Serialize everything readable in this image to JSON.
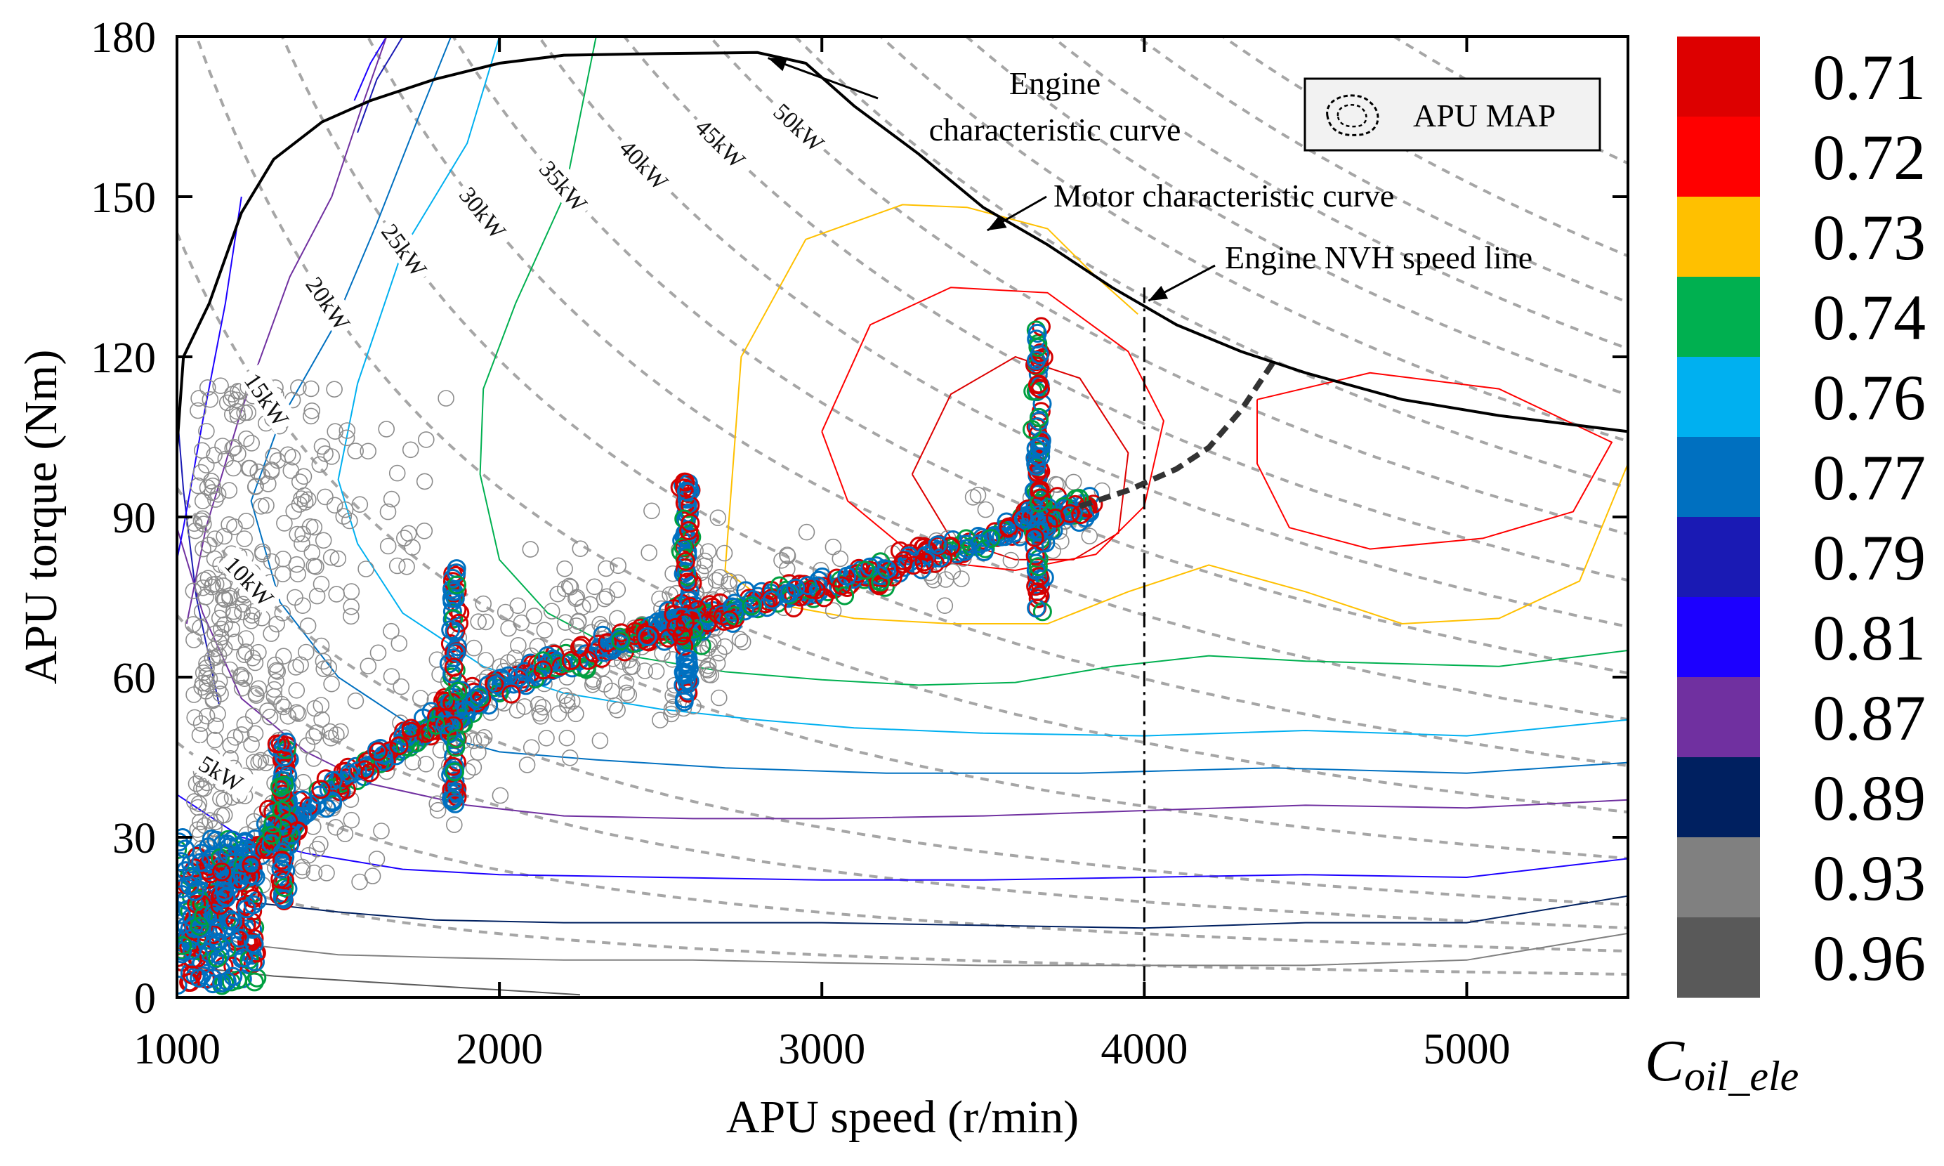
{
  "chart_data": {
    "type": "scatter",
    "xlabel": "APU speed (r/min)",
    "ylabel": "APU torque (Nm)",
    "xlim": [
      1000,
      5500
    ],
    "ylim": [
      0,
      180
    ],
    "xticks": [
      "1000",
      "2000",
      "3000",
      "4000",
      "5000"
    ],
    "yticks": [
      "0",
      "30",
      "60",
      "90",
      "120",
      "150",
      "180"
    ],
    "xtick_values": [
      1000,
      2000,
      3000,
      4000,
      5000
    ],
    "ytick_values": [
      0,
      30,
      60,
      90,
      120,
      150,
      180
    ],
    "legend": {
      "label": "APU MAP",
      "placement": "top-right"
    },
    "annotations": [
      {
        "id": "engine-curve",
        "lines": [
          "Engine",
          "characteristic curve"
        ],
        "point": [
          2820,
          176
        ]
      },
      {
        "id": "motor-curve",
        "lines": [
          "Motor characteristic curve"
        ],
        "point": [
          3500,
          145
        ]
      },
      {
        "id": "nvh-line",
        "lines": [
          "Engine NVH speed line"
        ],
        "point": [
          4000,
          131
        ]
      }
    ],
    "colorbar": {
      "title": "C",
      "title_sub": "oil_ele",
      "labels": [
        "0.71",
        "0.72",
        "0.73",
        "0.74",
        "0.76",
        "0.77",
        "0.79",
        "0.81",
        "0.87",
        "0.89",
        "0.93",
        "0.96"
      ],
      "colors": [
        "#dd0000",
        "#ff0000",
        "#ffc000",
        "#00b050",
        "#00b0f0",
        "#0070c0",
        "#1a1ab4",
        "#1c00ff",
        "#7030a0",
        "#002060",
        "#808080",
        "#595959"
      ]
    },
    "power_lines_kw": [
      5,
      10,
      15,
      20,
      25,
      30,
      35,
      40,
      45,
      50
    ],
    "power_labels": [
      "5kW",
      "10kW",
      "15kW",
      "20kW",
      "25kW",
      "30kW",
      "35kW",
      "40kW",
      "45kW",
      "50kW"
    ],
    "extra_power_lines_kw": [
      2.5,
      7.5,
      55,
      60,
      65,
      70,
      75,
      80,
      90
    ],
    "engine_curve": [
      [
        1000,
        103
      ],
      [
        1020,
        120
      ],
      [
        1100,
        130
      ],
      [
        1200,
        147
      ],
      [
        1300,
        157
      ],
      [
        1450,
        164
      ],
      [
        1600,
        168
      ],
      [
        1800,
        172
      ],
      [
        2000,
        175
      ],
      [
        2200,
        176.5
      ],
      [
        2500,
        176.8
      ],
      [
        2800,
        177
      ],
      [
        2950,
        175
      ],
      [
        3100,
        167
      ],
      [
        3300,
        158
      ],
      [
        3500,
        148
      ],
      [
        3700,
        141
      ],
      [
        3900,
        133
      ],
      [
        4100,
        126
      ],
      [
        4300,
        121
      ],
      [
        4500,
        117
      ],
      [
        4800,
        112
      ],
      [
        5100,
        109
      ],
      [
        5500,
        106
      ]
    ],
    "nvh_speed": 4000,
    "operating_line": [
      [
        1000,
        8
      ],
      [
        1100,
        17
      ],
      [
        1200,
        24
      ],
      [
        1300,
        30
      ],
      [
        1400,
        35
      ],
      [
        1500,
        40
      ],
      [
        1600,
        44
      ],
      [
        1700,
        48
      ],
      [
        1800,
        51
      ],
      [
        1900,
        55
      ],
      [
        2000,
        58
      ],
      [
        2100,
        61
      ],
      [
        2200,
        63
      ],
      [
        2300,
        65
      ],
      [
        2400,
        67
      ],
      [
        2500,
        69
      ],
      [
        2600,
        70
      ],
      [
        2700,
        72
      ],
      [
        2800,
        74
      ],
      [
        2900,
        75.5
      ],
      [
        3000,
        77
      ],
      [
        3100,
        78.5
      ],
      [
        3200,
        80
      ],
      [
        3300,
        82
      ],
      [
        3400,
        84
      ],
      [
        3500,
        86
      ],
      [
        3600,
        88
      ],
      [
        3700,
        90
      ],
      [
        3800,
        92
      ]
    ],
    "operating_line_extension": [
      [
        3800,
        92
      ],
      [
        3950,
        95
      ],
      [
        4100,
        99
      ],
      [
        4200,
        103
      ],
      [
        4300,
        110
      ],
      [
        4400,
        119
      ]
    ],
    "vertical_clusters": [
      {
        "speed": 1330,
        "tmin": 18,
        "tmax": 48
      },
      {
        "speed": 1860,
        "tmin": 35,
        "tmax": 81
      },
      {
        "speed": 2580,
        "tmin": 55,
        "tmax": 97
      },
      {
        "speed": 3670,
        "tmin": 72,
        "tmax": 126
      }
    ],
    "efficiency_contours": [
      {
        "level": "0.71",
        "color": "#dd0000",
        "points": [
          [
            3280,
            98
          ],
          [
            3400,
            113
          ],
          [
            3600,
            120
          ],
          [
            3800,
            116
          ],
          [
            3950,
            102
          ],
          [
            3920,
            87
          ],
          [
            3780,
            82
          ],
          [
            3600,
            82
          ],
          [
            3400,
            86
          ],
          [
            3280,
            98
          ]
        ]
      },
      {
        "level": "0.72",
        "color": "#ff0000",
        "points": [
          [
            3000,
            106
          ],
          [
            3150,
            126
          ],
          [
            3400,
            133
          ],
          [
            3700,
            132
          ],
          [
            3950,
            121
          ],
          [
            4060,
            108
          ],
          [
            4000,
            92
          ],
          [
            3850,
            83
          ],
          [
            3600,
            80
          ],
          [
            3300,
            82
          ],
          [
            3080,
            93
          ],
          [
            3000,
            106
          ]
        ]
      },
      {
        "level": "0.72",
        "color": "#ff0000",
        "points": [
          [
            4350,
            112
          ],
          [
            4700,
            117
          ],
          [
            5100,
            114
          ],
          [
            5450,
            104
          ],
          [
            5330,
            91
          ],
          [
            5050,
            86
          ],
          [
            4700,
            84
          ],
          [
            4450,
            88
          ],
          [
            4350,
            100
          ],
          [
            4350,
            112
          ]
        ]
      },
      {
        "level": "0.73",
        "color": "#ffc000",
        "points": [
          [
            2700,
            80
          ],
          [
            2750,
            120
          ],
          [
            2950,
            142
          ],
          [
            3250,
            148.5
          ],
          [
            3450,
            148
          ],
          [
            3700,
            144
          ],
          [
            3850,
            135
          ],
          [
            3980,
            128
          ]
        ]
      },
      {
        "level": "0.73",
        "color": "#ffc000",
        "points": [
          [
            2700,
            80
          ],
          [
            2830,
            74
          ],
          [
            3100,
            71
          ],
          [
            3400,
            70
          ],
          [
            3700,
            70
          ],
          [
            3950,
            76
          ],
          [
            4200,
            81
          ],
          [
            4500,
            76
          ],
          [
            4800,
            70
          ],
          [
            5100,
            71
          ],
          [
            5350,
            78
          ],
          [
            5500,
            100
          ]
        ]
      },
      {
        "level": "0.74",
        "color": "#00b050",
        "points": [
          [
            2300,
            180
          ],
          [
            2200,
            150
          ],
          [
            2050,
            130
          ],
          [
            1950,
            114
          ],
          [
            1940,
            98
          ],
          [
            2000,
            82
          ],
          [
            2150,
            72
          ],
          [
            2400,
            64
          ],
          [
            2700,
            61
          ],
          [
            3000,
            59.5
          ],
          [
            3300,
            58.5
          ],
          [
            3600,
            59
          ],
          [
            3900,
            62
          ],
          [
            4200,
            64
          ],
          [
            4500,
            63
          ],
          [
            4800,
            62.5
          ],
          [
            5100,
            62
          ],
          [
            5500,
            65
          ]
        ]
      },
      {
        "level": "0.76",
        "color": "#00b0f0",
        "points": [
          [
            2000,
            180
          ],
          [
            1900,
            160
          ],
          [
            1700,
            140
          ],
          [
            1560,
            115
          ],
          [
            1500,
            97
          ],
          [
            1560,
            85
          ],
          [
            1700,
            72
          ],
          [
            1950,
            62
          ],
          [
            2200,
            57
          ],
          [
            2500,
            54
          ],
          [
            2800,
            52
          ],
          [
            3100,
            50.5
          ],
          [
            3500,
            49.5
          ],
          [
            4000,
            49
          ],
          [
            4500,
            50
          ],
          [
            5000,
            49
          ],
          [
            5500,
            52
          ]
        ]
      },
      {
        "level": "0.77",
        "color": "#0070c0",
        "points": [
          [
            1850,
            180
          ],
          [
            1750,
            165
          ],
          [
            1620,
            145
          ],
          [
            1480,
            125
          ],
          [
            1320,
            108
          ],
          [
            1230,
            93
          ],
          [
            1320,
            74
          ],
          [
            1500,
            60
          ],
          [
            1750,
            50
          ],
          [
            2000,
            46
          ],
          [
            2300,
            44.5
          ],
          [
            2700,
            43
          ],
          [
            3200,
            42
          ],
          [
            3800,
            42
          ],
          [
            4400,
            43
          ],
          [
            5000,
            42
          ],
          [
            5500,
            44
          ]
        ]
      },
      {
        "level": "0.79",
        "color": "#1a1ab4",
        "points": [
          [
            1700,
            180
          ],
          [
            1620,
            172
          ],
          [
            1560,
            162
          ]
        ]
      },
      {
        "level": "0.81",
        "color": "#1c00ff",
        "points": [
          [
            1650,
            180
          ],
          [
            1600,
            175
          ],
          [
            1550,
            168
          ]
        ]
      },
      {
        "level": "0.87",
        "color": "#7030a0",
        "points": [
          [
            1000,
            88
          ],
          [
            1080,
            72
          ],
          [
            1200,
            56
          ],
          [
            1400,
            46
          ],
          [
            1600,
            40
          ],
          [
            1900,
            36
          ],
          [
            2200,
            34
          ],
          [
            2600,
            33.5
          ],
          [
            3000,
            33.5
          ],
          [
            3500,
            34
          ],
          [
            4000,
            35
          ],
          [
            4500,
            36
          ],
          [
            5000,
            35.5
          ],
          [
            5500,
            37
          ]
        ]
      },
      {
        "level": "0.81",
        "color": "#1c00ff",
        "points": [
          [
            1000,
            38
          ],
          [
            1200,
            30
          ],
          [
            1400,
            27
          ],
          [
            1700,
            24
          ],
          [
            2000,
            23
          ],
          [
            2500,
            22.5
          ],
          [
            3000,
            22
          ],
          [
            3500,
            22
          ],
          [
            4000,
            22.5
          ],
          [
            4500,
            23
          ],
          [
            5000,
            22.5
          ],
          [
            5500,
            26
          ]
        ]
      },
      {
        "level": "0.89",
        "color": "#002060",
        "points": [
          [
            1000,
            24
          ],
          [
            1200,
            18
          ],
          [
            1500,
            16
          ],
          [
            1800,
            14.5
          ],
          [
            2200,
            14
          ],
          [
            2600,
            14
          ],
          [
            3000,
            14
          ],
          [
            3500,
            13.5
          ],
          [
            4000,
            13
          ],
          [
            4500,
            14
          ],
          [
            5000,
            14
          ],
          [
            5500,
            19
          ]
        ]
      },
      {
        "level": "0.93",
        "color": "#808080",
        "points": [
          [
            1000,
            15
          ],
          [
            1200,
            10
          ],
          [
            1500,
            8
          ],
          [
            1800,
            7.5
          ],
          [
            2200,
            7
          ],
          [
            2600,
            7
          ],
          [
            3000,
            6.5
          ],
          [
            3500,
            6
          ],
          [
            4000,
            6
          ],
          [
            4500,
            6
          ],
          [
            5000,
            7
          ],
          [
            5500,
            12
          ]
        ]
      },
      {
        "level": "0.96",
        "color": "#595959",
        "points": [
          [
            1000,
            6
          ],
          [
            1300,
            4
          ],
          [
            1700,
            2.5
          ],
          [
            2250,
            0.5
          ]
        ]
      }
    ],
    "left_contours": [
      {
        "level": "0.79",
        "color": "#1a1ab4",
        "points": [
          [
            1000,
            110
          ],
          [
            1020,
            95
          ],
          [
            1060,
            75
          ],
          [
            1130,
            55
          ]
        ]
      },
      {
        "level": "0.81",
        "color": "#1c00ff",
        "points": [
          [
            1200,
            150
          ],
          [
            1150,
            130
          ],
          [
            1080,
            108
          ],
          [
            1020,
            88
          ],
          [
            1000,
            82
          ]
        ]
      },
      {
        "level": "0.87",
        "color": "#7030a0",
        "points": [
          [
            1650,
            180
          ],
          [
            1580,
            168
          ],
          [
            1480,
            150
          ],
          [
            1350,
            135
          ],
          [
            1200,
            110
          ],
          [
            1090,
            88
          ],
          [
            1030,
            70
          ]
        ]
      }
    ],
    "gray_point_count": 700,
    "colored_point_count": 1500
  }
}
